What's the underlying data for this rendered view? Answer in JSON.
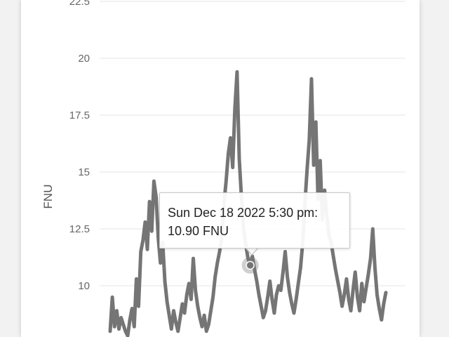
{
  "chart_data": {
    "type": "line",
    "ylabel": "FNU",
    "ylim": [
      8,
      23
    ],
    "yticks": [
      "10",
      "12.5",
      "15",
      "17.5",
      "20",
      "22.5"
    ],
    "ytick_values": [
      10,
      12.5,
      15,
      17.5,
      20,
      22.5
    ],
    "grid": true,
    "series": [
      {
        "color": "#757575",
        "values": [
          8.0,
          9.5,
          8.2,
          8.9,
          8.1,
          8.6,
          8.3,
          8.0,
          7.8,
          8.5,
          9.0,
          8.2,
          10.3,
          9.1,
          11.5,
          12.0,
          12.8,
          11.6,
          13.7,
          12.4,
          14.6,
          13.9,
          12.1,
          11.0,
          11.9,
          10.2,
          9.3,
          8.7,
          8.1,
          8.9,
          8.4,
          8.0,
          8.6,
          9.2,
          8.8,
          9.6,
          10.1,
          9.4,
          11.2,
          9.8,
          9.1,
          8.6,
          8.2,
          8.7,
          8.0,
          8.3,
          8.9,
          9.5,
          10.4,
          11.0,
          11.5,
          12.1,
          13.6,
          14.6,
          15.8,
          16.5,
          15.2,
          17.8,
          19.4,
          15.6,
          13.9,
          12.5,
          11.8,
          11.2,
          10.9,
          11.3,
          10.7,
          10.2,
          9.6,
          9.1,
          8.6,
          8.9,
          9.5,
          10.2,
          9.4,
          8.8,
          9.6,
          10.0,
          9.8,
          10.6,
          11.5,
          10.4,
          9.7,
          9.2,
          8.8,
          9.4,
          10.1,
          10.8,
          11.9,
          13.6,
          15.1,
          16.4,
          19.1,
          15.3,
          17.2,
          13.8,
          15.5,
          12.9,
          14.2,
          13.1,
          12.2,
          11.9,
          11.3,
          10.7,
          10.2,
          9.7,
          9.1,
          9.6,
          10.3,
          9.4,
          8.9,
          9.8,
          10.6,
          9.5,
          8.9,
          10.1,
          9.3,
          9.9,
          10.5,
          11.2,
          12.5,
          10.8,
          9.6,
          9.0,
          8.5,
          9.2,
          9.7
        ]
      }
    ],
    "highlight": {
      "index": 64,
      "value": 10.9
    }
  },
  "tooltip": {
    "line1": "Sun Dec 18 2022 5:30 pm:",
    "line2": "10.90 FNU"
  }
}
